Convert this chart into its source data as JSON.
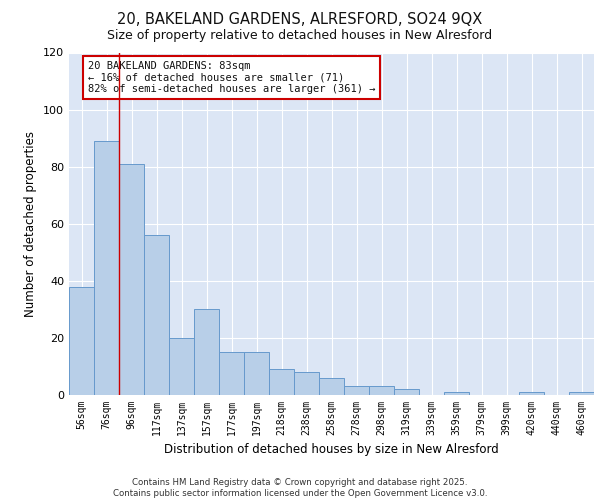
{
  "title1": "20, BAKELAND GARDENS, ALRESFORD, SO24 9QX",
  "title2": "Size of property relative to detached houses in New Alresford",
  "xlabel": "Distribution of detached houses by size in New Alresford",
  "ylabel": "Number of detached properties",
  "categories": [
    "56sqm",
    "76sqm",
    "96sqm",
    "117sqm",
    "137sqm",
    "157sqm",
    "177sqm",
    "197sqm",
    "218sqm",
    "238sqm",
    "258sqm",
    "278sqm",
    "298sqm",
    "319sqm",
    "339sqm",
    "359sqm",
    "379sqm",
    "399sqm",
    "420sqm",
    "440sqm",
    "460sqm"
  ],
  "values": [
    38,
    89,
    81,
    56,
    20,
    30,
    15,
    15,
    9,
    8,
    6,
    3,
    3,
    2,
    0,
    1,
    0,
    0,
    1,
    0,
    1
  ],
  "bar_color": "#b8cfe8",
  "bar_edge_color": "#6699cc",
  "background_color": "#dce6f5",
  "grid_color": "#ffffff",
  "red_line_x": 1.5,
  "annotation_text": "20 BAKELAND GARDENS: 83sqm\n← 16% of detached houses are smaller (71)\n82% of semi-detached houses are larger (361) →",
  "annotation_box_color": "#ffffff",
  "annotation_box_edge": "#cc0000",
  "ylim": [
    0,
    120
  ],
  "yticks": [
    0,
    20,
    40,
    60,
    80,
    100,
    120
  ],
  "footer1": "Contains HM Land Registry data © Crown copyright and database right 2025.",
  "footer2": "Contains public sector information licensed under the Open Government Licence v3.0."
}
